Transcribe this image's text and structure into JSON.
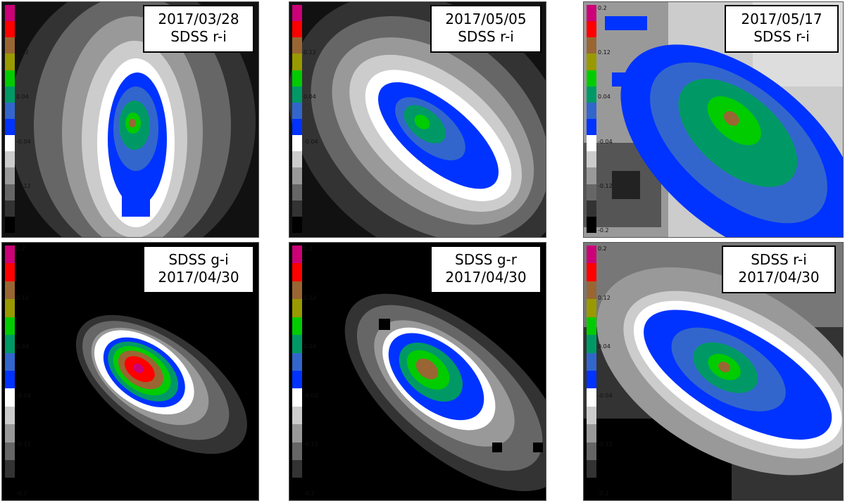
{
  "colorbar_ticks": [
    "0.2",
    "0.12",
    "0.04",
    "-0.04",
    "-0.12",
    "-0.2"
  ],
  "colorbar_colors": [
    "#cc0077",
    "#ff0000",
    "#996633",
    "#999900",
    "#00cc00",
    "#009966",
    "#3366cc",
    "#0033ff",
    "#ffffff",
    "#cccccc",
    "#999999",
    "#666666",
    "#333333",
    "#000000"
  ],
  "panels": [
    {
      "line1": "2017/03/28",
      "line2": "SDSS r-i"
    },
    {
      "line1": "2017/05/05",
      "line2": "SDSS r-i"
    },
    {
      "line1": "2017/05/17",
      "line2": "SDSS r-i"
    },
    {
      "line1": "SDSS g-i",
      "line2": "2017/04/30"
    },
    {
      "line1": "SDSS g-r",
      "line2": "2017/04/30"
    },
    {
      "line1": "SDSS r-i",
      "line2": "2017/04/30"
    }
  ]
}
